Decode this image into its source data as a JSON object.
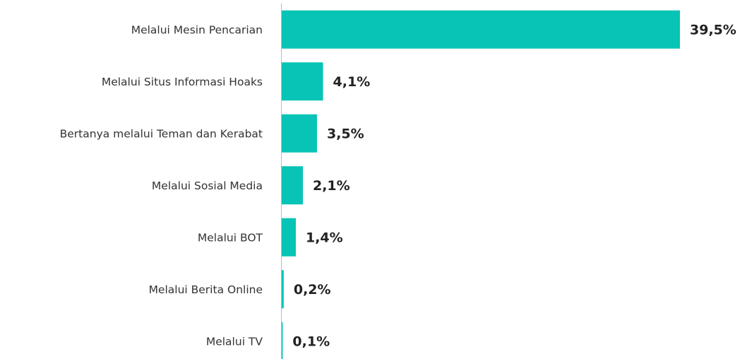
{
  "chart_data": {
    "type": "bar",
    "orientation": "horizontal",
    "categories": [
      "Melalui Mesin Pencarian",
      "Melalui Situs Informasi Hoaks",
      "Bertanya melalui Teman dan Kerabat",
      "Melalui Sosial Media",
      "Melalui BOT",
      "Melalui Berita Online",
      "Melalui TV"
    ],
    "values": [
      39.5,
      4.1,
      3.5,
      2.1,
      1.4,
      0.2,
      0.1
    ],
    "value_labels": [
      "39,5%",
      "4,1%",
      "3,5%",
      "2,1%",
      "1,4%",
      "0,2%",
      "0,1%"
    ],
    "color": "#07c4b6"
  }
}
